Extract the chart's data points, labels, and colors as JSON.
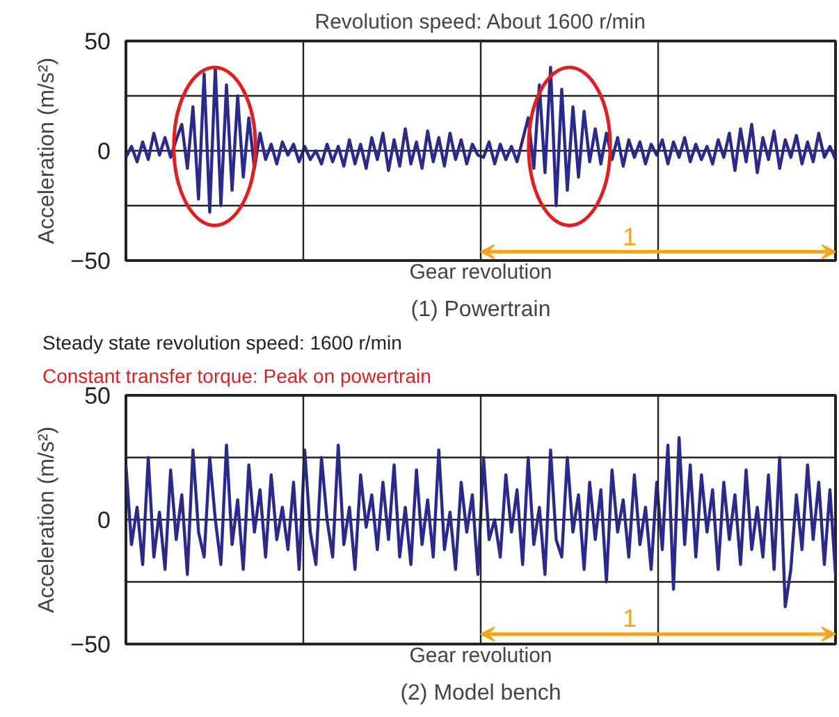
{
  "chart_data": [
    {
      "type": "line",
      "subtitle": "Revolution speed: About 1600 r/min",
      "title": "(1) Powertrain",
      "xlabel": "Gear revolution",
      "ylabel": "Acceleration (m/s²)",
      "categories": [
        null,
        null,
        null,
        null,
        null,
        null,
        null,
        null,
        null,
        null,
        null,
        null,
        null,
        null,
        null,
        null,
        null,
        null,
        null,
        null,
        null,
        null,
        null,
        null,
        null,
        null,
        null,
        null,
        null,
        null,
        null,
        null,
        null,
        null,
        null,
        null,
        null,
        null,
        null,
        null,
        null,
        null,
        null,
        null,
        null,
        null,
        null,
        null,
        null,
        null,
        null,
        null,
        null,
        null,
        null,
        null,
        null,
        null,
        null,
        null,
        null,
        null,
        null,
        null,
        null,
        null,
        null,
        null,
        null,
        null,
        null,
        null,
        null,
        null,
        null,
        null,
        null,
        null,
        null,
        null,
        null,
        null,
        null,
        null,
        null,
        null,
        null,
        null,
        null,
        null,
        null,
        null,
        null,
        null,
        null,
        null,
        null,
        null,
        null,
        null,
        null,
        null,
        null,
        null,
        null,
        null,
        null,
        null,
        null,
        null,
        null,
        null,
        null,
        null,
        null,
        null,
        null,
        null,
        null,
        null,
        null,
        null,
        null,
        null,
        null,
        null,
        null,
        null
      ],
      "series": [
        {
          "color": "#2b2a8c",
          "values": [
            -3,
            2,
            -5,
            4,
            -4,
            8,
            -2,
            6,
            -3,
            5,
            12,
            -8,
            20,
            -22,
            35,
            -28,
            38,
            -25,
            30,
            -18,
            25,
            -12,
            15,
            -8,
            8,
            -4,
            3,
            -6,
            4,
            -2,
            3,
            -5,
            2,
            -4,
            0,
            -6,
            3,
            -5,
            2,
            -7,
            5,
            -6,
            3,
            -8,
            6,
            -4,
            8,
            -9,
            5,
            -7,
            10,
            -6,
            4,
            -8,
            9,
            -5,
            6,
            -7,
            8,
            -4,
            5,
            -6,
            3,
            -2,
            -3,
            4,
            -6,
            3,
            -4,
            2,
            -5,
            5,
            15,
            -8,
            30,
            -10,
            38,
            -25,
            28,
            -18,
            20,
            -12,
            18,
            -5,
            10,
            -6,
            8,
            -4,
            6,
            -7,
            5,
            -3,
            4,
            -6,
            3,
            -2,
            5,
            -6,
            4,
            -3,
            6,
            -5,
            3,
            -4,
            2,
            -6,
            5,
            -3,
            8,
            -9,
            10,
            -5,
            12,
            -10,
            6,
            -4,
            9,
            -8,
            5,
            -3,
            7,
            -6,
            4,
            -5,
            8,
            -3,
            2,
            -4
          ]
        }
      ],
      "ylim": [
        -50,
        50
      ],
      "yticks": [
        -50,
        0,
        50
      ],
      "grid": true,
      "annotations": [
        "1"
      ]
    },
    {
      "type": "line",
      "title": "(2) Model bench",
      "xlabel": "Gear revolution",
      "ylabel": "Acceleration (m/s²)",
      "categories": [
        null,
        null,
        null,
        null,
        null,
        null,
        null,
        null,
        null,
        null,
        null,
        null,
        null,
        null,
        null,
        null,
        null,
        null,
        null,
        null,
        null,
        null,
        null,
        null,
        null,
        null,
        null,
        null,
        null,
        null,
        null,
        null,
        null,
        null,
        null,
        null,
        null,
        null,
        null,
        null,
        null,
        null,
        null,
        null,
        null,
        null,
        null,
        null,
        null,
        null,
        null,
        null,
        null,
        null,
        null,
        null,
        null,
        null,
        null,
        null,
        null,
        null,
        null,
        null,
        null,
        null,
        null,
        null,
        null,
        null,
        null,
        null,
        null,
        null,
        null,
        null,
        null,
        null,
        null,
        null,
        null,
        null,
        null,
        null,
        null,
        null,
        null,
        null,
        null,
        null,
        null,
        null,
        null,
        null,
        null,
        null,
        null,
        null,
        null,
        null,
        null,
        null,
        null,
        null,
        null,
        null,
        null,
        null,
        null,
        null,
        null,
        null,
        null,
        null,
        null,
        null,
        null,
        null,
        null,
        null,
        null,
        null,
        null,
        null,
        null,
        null,
        null,
        null
      ],
      "series": [
        {
          "color": "#2b2a8c",
          "values": [
            22,
            -10,
            5,
            -18,
            25,
            -15,
            3,
            -20,
            20,
            -8,
            10,
            -22,
            28,
            -5,
            -15,
            25,
            0,
            -18,
            30,
            -10,
            8,
            -20,
            22,
            -5,
            12,
            -15,
            18,
            -8,
            5,
            -12,
            15,
            -20,
            28,
            -5,
            -18,
            25,
            0,
            -15,
            30,
            -10,
            5,
            -20,
            18,
            -3,
            10,
            -12,
            15,
            -8,
            22,
            -15,
            5,
            -18,
            20,
            -10,
            8,
            -15,
            28,
            -12,
            3,
            -20,
            15,
            -5,
            10,
            -22,
            25,
            -8,
            0,
            -15,
            18,
            -5,
            12,
            -18,
            25,
            -10,
            5,
            -22,
            28,
            -8,
            -15,
            25,
            -5,
            10,
            -20,
            15,
            -8,
            12,
            -25,
            20,
            -5,
            8,
            -15,
            18,
            -10,
            5,
            -20,
            15,
            -12,
            30,
            -28,
            33,
            -10,
            22,
            -15,
            18,
            -5,
            12,
            -20,
            15,
            -8,
            10,
            -18,
            20,
            -12,
            5,
            -15,
            18,
            -20,
            25,
            -35,
            -20,
            10,
            -12,
            22,
            -8,
            15,
            -18,
            12,
            -22
          ]
        }
      ],
      "ylim": [
        -50,
        50
      ],
      "yticks": [
        -50,
        0,
        50
      ],
      "grid": true,
      "annotations": [
        "Steady state revolution speed: 1600 r/min",
        "Constant transfer torque: Peak on powertrain",
        "1"
      ]
    }
  ]
}
